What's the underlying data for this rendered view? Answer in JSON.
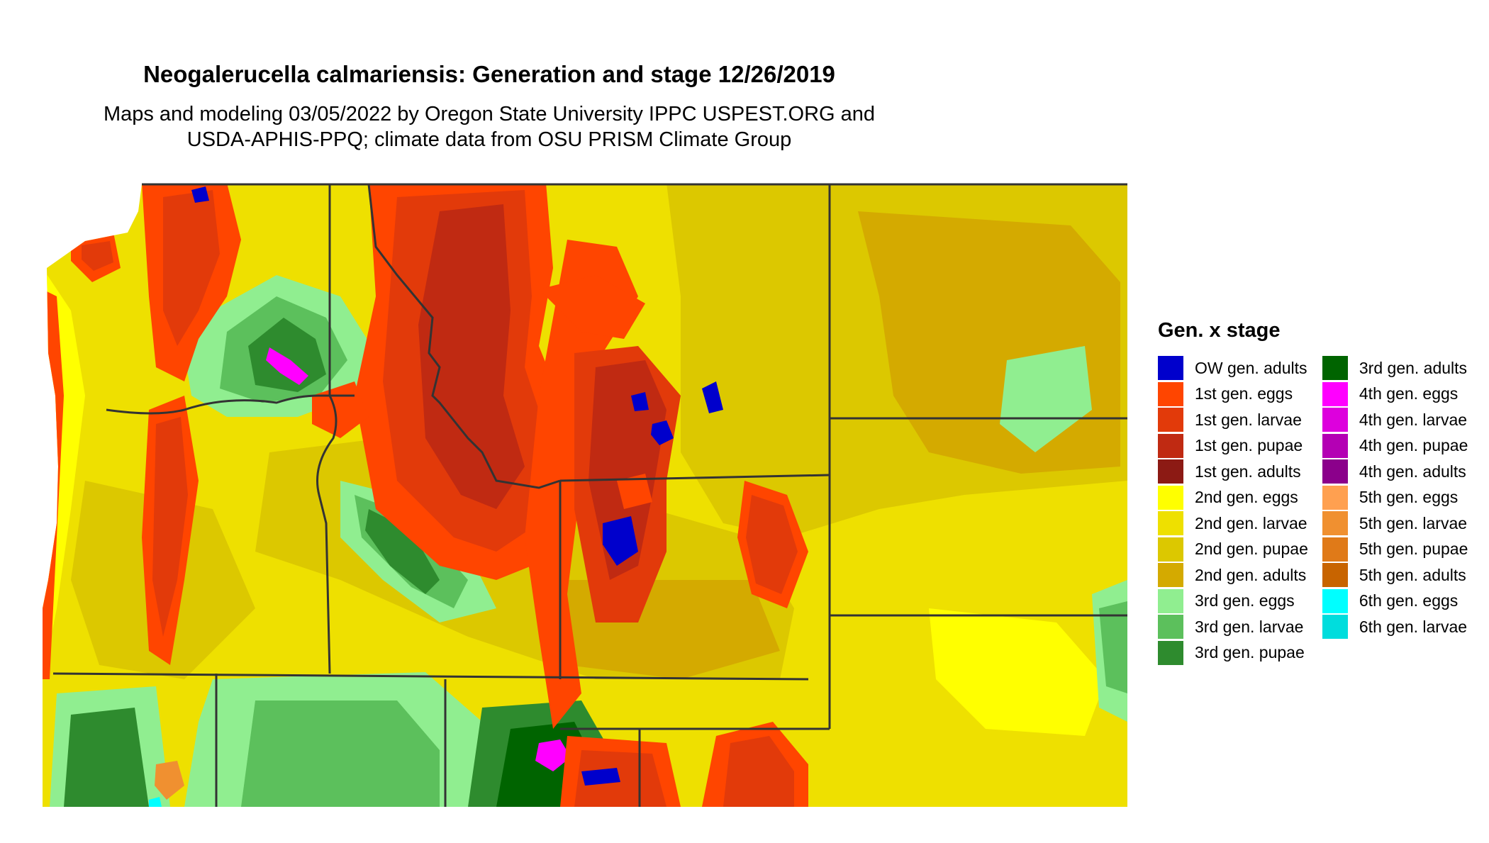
{
  "title": "Neogalerucella calmariensis: Generation and stage 12/26/2019",
  "subtitle_line1": "Maps and modeling 03/05/2022 by Oregon State University IPPC USPEST.ORG and",
  "subtitle_line2": "USDA-APHIS-PPQ; climate data from OSU PRISM Climate Group",
  "legend": {
    "title": "Gen. x stage",
    "col1": [
      {
        "label": "OW gen. adults",
        "color": "#0000cc"
      },
      {
        "label": "1st gen. eggs",
        "color": "#ff4500"
      },
      {
        "label": "1st gen. larvae",
        "color": "#e23a0a"
      },
      {
        "label": "1st gen. pupae",
        "color": "#c02a12"
      },
      {
        "label": "1st gen. adults",
        "color": "#8c1a14"
      },
      {
        "label": "2nd gen. eggs",
        "color": "#ffff00"
      },
      {
        "label": "2nd gen. larvae",
        "color": "#eee000"
      },
      {
        "label": "2nd gen. pupae",
        "color": "#dcc800"
      },
      {
        "label": "2nd gen. adults",
        "color": "#d4aa00"
      },
      {
        "label": "3rd gen. eggs",
        "color": "#90ee90"
      },
      {
        "label": "3rd gen. larvae",
        "color": "#5cc05c"
      },
      {
        "label": "3rd gen. pupae",
        "color": "#2e8b2e"
      }
    ],
    "col2": [
      {
        "label": "3rd gen. adults",
        "color": "#006400"
      },
      {
        "label": "4th gen. eggs",
        "color": "#ff00ff"
      },
      {
        "label": "4th gen. larvae",
        "color": "#dd00dd"
      },
      {
        "label": "4th gen. pupae",
        "color": "#b400b4"
      },
      {
        "label": "4th gen. adults",
        "color": "#8b008b"
      },
      {
        "label": "5th gen. eggs",
        "color": "#ffa050"
      },
      {
        "label": "5th gen. larvae",
        "color": "#f09030"
      },
      {
        "label": "5th gen. pupae",
        "color": "#e07a18"
      },
      {
        "label": "5th gen. adults",
        "color": "#c86400"
      },
      {
        "label": "6th gen. eggs",
        "color": "#00ffff"
      },
      {
        "label": "6th gen. larvae",
        "color": "#00dddd"
      }
    ]
  },
  "map_colors": {
    "base": "#eee000",
    "pupae_yellow": "#dcc800",
    "adults_yellow": "#d4aa00",
    "eggs_yellow": "#ffff00",
    "red_eggs": "#ff4500",
    "red_larvae": "#e23a0a",
    "red_pupae": "#c02a12",
    "green_eggs": "#90ee90",
    "green_larvae": "#5cc05c",
    "green_pupae": "#2e8b2e",
    "green_adults": "#006400",
    "magenta": "#ff00ff",
    "blue": "#0000cc",
    "orange": "#f09030",
    "border": "#333333"
  }
}
